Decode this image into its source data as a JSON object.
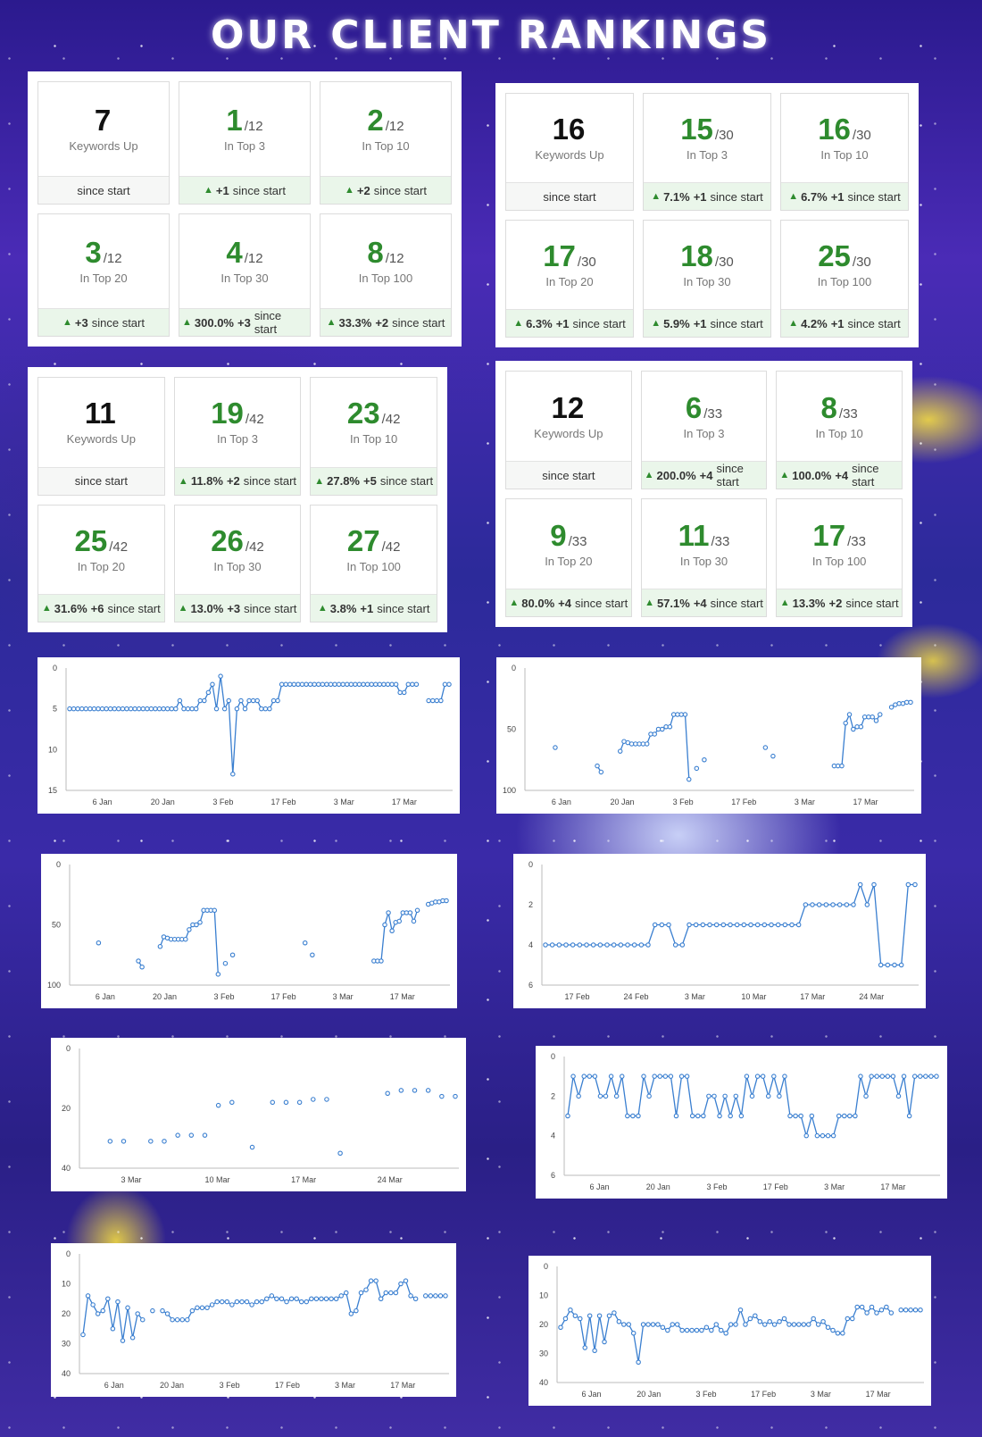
{
  "title": "OUR CLIENT RANKINGS",
  "colors": {
    "accent": "#2e8b2e",
    "line": "#3a7fd0"
  },
  "icons": {
    "up": "arrow-up-icon"
  },
  "panels": [
    {
      "cards": [
        {
          "value": "7",
          "of": "",
          "label": "Keywords Up",
          "pct": "",
          "change": "",
          "suffix": "since start"
        },
        {
          "value": "1",
          "of": "/12",
          "label": "In Top 3",
          "pct": "",
          "change": "+1",
          "suffix": "since start"
        },
        {
          "value": "2",
          "of": "/12",
          "label": "In Top 10",
          "pct": "",
          "change": "+2",
          "suffix": "since start"
        },
        {
          "value": "3",
          "of": "/12",
          "label": "In Top 20",
          "pct": "",
          "change": "+3",
          "suffix": "since start"
        },
        {
          "value": "4",
          "of": "/12",
          "label": "In Top 30",
          "pct": "300.0%",
          "change": "+3",
          "suffix": "since start"
        },
        {
          "value": "8",
          "of": "/12",
          "label": "In Top 100",
          "pct": "33.3%",
          "change": "+2",
          "suffix": "since start"
        }
      ]
    },
    {
      "cards": [
        {
          "value": "16",
          "of": "",
          "label": "Keywords Up",
          "pct": "",
          "change": "",
          "suffix": "since start"
        },
        {
          "value": "15",
          "of": "/30",
          "label": "In Top 3",
          "pct": "7.1%",
          "change": "+1",
          "suffix": "since start"
        },
        {
          "value": "16",
          "of": "/30",
          "label": "In Top 10",
          "pct": "6.7%",
          "change": "+1",
          "suffix": "since start"
        },
        {
          "value": "17",
          "of": "/30",
          "label": "In Top 20",
          "pct": "6.3%",
          "change": "+1",
          "suffix": "since start"
        },
        {
          "value": "18",
          "of": "/30",
          "label": "In Top 30",
          "pct": "5.9%",
          "change": "+1",
          "suffix": "since start"
        },
        {
          "value": "25",
          "of": "/30",
          "label": "In Top 100",
          "pct": "4.2%",
          "change": "+1",
          "suffix": "since start"
        }
      ]
    },
    {
      "cards": [
        {
          "value": "11",
          "of": "",
          "label": "Keywords Up",
          "pct": "",
          "change": "",
          "suffix": "since start"
        },
        {
          "value": "19",
          "of": "/42",
          "label": "In Top 3",
          "pct": "11.8%",
          "change": "+2",
          "suffix": "since start"
        },
        {
          "value": "23",
          "of": "/42",
          "label": "In Top 10",
          "pct": "27.8%",
          "change": "+5",
          "suffix": "since start"
        },
        {
          "value": "25",
          "of": "/42",
          "label": "In Top 20",
          "pct": "31.6%",
          "change": "+6",
          "suffix": "since start"
        },
        {
          "value": "26",
          "of": "/42",
          "label": "In Top 30",
          "pct": "13.0%",
          "change": "+3",
          "suffix": "since start"
        },
        {
          "value": "27",
          "of": "/42",
          "label": "In Top 100",
          "pct": "3.8%",
          "change": "+1",
          "suffix": "since start"
        }
      ]
    },
    {
      "cards": [
        {
          "value": "12",
          "of": "",
          "label": "Keywords Up",
          "pct": "",
          "change": "",
          "suffix": "since start"
        },
        {
          "value": "6",
          "of": "/33",
          "label": "In Top 3",
          "pct": "200.0%",
          "change": "+4",
          "suffix": "since start"
        },
        {
          "value": "8",
          "of": "/33",
          "label": "In Top 10",
          "pct": "100.0%",
          "change": "+4",
          "suffix": "since start"
        },
        {
          "value": "9",
          "of": "/33",
          "label": "In Top 20",
          "pct": "80.0%",
          "change": "+4",
          "suffix": "since start"
        },
        {
          "value": "11",
          "of": "/33",
          "label": "In Top 30",
          "pct": "57.1%",
          "change": "+4",
          "suffix": "since start"
        },
        {
          "value": "17",
          "of": "/33",
          "label": "In Top 100",
          "pct": "13.3%",
          "change": "+2",
          "suffix": "since start"
        }
      ]
    }
  ],
  "chart_data": [
    {
      "type": "line",
      "title": "",
      "ylim": [
        0,
        15
      ],
      "reversed_y": true,
      "yticks": [
        "0",
        "5",
        "10",
        "15"
      ],
      "xticks": [
        "6 Jan",
        "20 Jan",
        "3 Feb",
        "17 Feb",
        "3 Mar",
        "17 Mar"
      ],
      "series": [
        {
          "values": [
            5,
            5,
            5,
            5,
            5,
            5,
            5,
            5,
            5,
            5,
            5,
            5,
            5,
            5,
            5,
            5,
            5,
            5,
            5,
            5,
            5,
            5,
            5,
            5,
            5,
            5,
            5,
            4,
            5,
            5,
            5,
            5,
            4,
            4,
            3,
            2,
            5,
            1,
            5,
            4,
            13,
            5,
            4,
            5,
            4,
            4,
            4,
            5,
            5,
            5,
            4,
            4,
            2,
            2,
            2,
            2,
            2,
            2,
            2,
            2,
            2,
            2,
            2,
            2,
            2,
            2,
            2,
            2,
            2,
            2,
            2,
            2,
            2,
            2,
            2,
            2,
            2,
            2,
            2,
            2,
            2,
            3,
            3,
            2,
            2,
            2,
            null,
            null,
            4,
            4,
            4,
            4,
            2,
            2
          ]
        }
      ]
    },
    {
      "type": "line",
      "title": "",
      "ylim": [
        0,
        100
      ],
      "reversed_y": true,
      "yticks": [
        "0",
        "50",
        "100"
      ],
      "xticks": [
        "6 Jan",
        "20 Jan",
        "3 Feb",
        "17 Feb",
        "3 Mar",
        "17 Mar"
      ],
      "series": [
        {
          "values": [
            null,
            null,
            null,
            null,
            null,
            null,
            null,
            65,
            null,
            null,
            null,
            null,
            null,
            null,
            null,
            null,
            null,
            null,
            80,
            85,
            null,
            null,
            null,
            null,
            68,
            60,
            61,
            62,
            62,
            62,
            62,
            62,
            54,
            54,
            50,
            50,
            48,
            48,
            38,
            38,
            38,
            38,
            91,
            null,
            82,
            null,
            75,
            null,
            null,
            null,
            null,
            null,
            null,
            null,
            null,
            null,
            null,
            null,
            null,
            null,
            null,
            null,
            65,
            null,
            72,
            null,
            null,
            null,
            null,
            null,
            null,
            null,
            null,
            null,
            null,
            null,
            null,
            null,
            null,
            null,
            80,
            80,
            80,
            45,
            38,
            50,
            48,
            48,
            40,
            40,
            40,
            43,
            38,
            null,
            null,
            32,
            30,
            29,
            29,
            28,
            28
          ]
        }
      ]
    },
    {
      "type": "line",
      "title": "",
      "ylim": [
        0,
        100
      ],
      "reversed_y": true,
      "yticks": [
        "0",
        "50",
        "100"
      ],
      "xticks": [
        "6 Jan",
        "20 Jan",
        "3 Feb",
        "17 Feb",
        "3 Mar",
        "17 Mar"
      ],
      "series": [
        {
          "values": [
            null,
            null,
            null,
            null,
            null,
            null,
            null,
            65,
            null,
            null,
            null,
            null,
            null,
            null,
            null,
            null,
            null,
            null,
            80,
            85,
            null,
            null,
            null,
            null,
            68,
            60,
            61,
            62,
            62,
            62,
            62,
            62,
            54,
            50,
            50,
            48,
            38,
            38,
            38,
            38,
            91,
            null,
            82,
            null,
            75,
            null,
            null,
            null,
            null,
            null,
            null,
            null,
            null,
            null,
            null,
            null,
            null,
            null,
            null,
            null,
            null,
            null,
            null,
            null,
            65,
            null,
            75,
            null,
            null,
            null,
            null,
            null,
            null,
            null,
            null,
            null,
            null,
            null,
            null,
            null,
            null,
            null,
            null,
            80,
            80,
            80,
            50,
            40,
            55,
            48,
            47,
            40,
            40,
            40,
            47,
            38,
            null,
            null,
            33,
            32,
            31,
            31,
            30,
            30
          ]
        }
      ]
    },
    {
      "type": "line",
      "title": "",
      "ylim": [
        0,
        6
      ],
      "reversed_y": true,
      "yticks": [
        "0",
        "2",
        "4",
        "6"
      ],
      "xticks": [
        "17 Feb",
        "24 Feb",
        "3 Mar",
        "10 Mar",
        "17 Mar",
        "24 Mar"
      ],
      "series": [
        {
          "values": [
            4,
            4,
            4,
            4,
            4,
            4,
            4,
            4,
            4,
            4,
            4,
            4,
            4,
            4,
            4,
            4,
            3,
            3,
            3,
            4,
            4,
            3,
            3,
            3,
            3,
            3,
            3,
            3,
            3,
            3,
            3,
            3,
            3,
            3,
            3,
            3,
            3,
            3,
            2,
            2,
            2,
            2,
            2,
            2,
            2,
            2,
            1,
            2,
            1,
            5,
            5,
            5,
            5,
            1,
            1
          ]
        }
      ]
    },
    {
      "type": "line",
      "title": "",
      "ylim": [
        0,
        40
      ],
      "reversed_y": true,
      "yticks": [
        "0",
        "20",
        "40"
      ],
      "xticks": [
        "3 Mar",
        "10 Mar",
        "17 Mar",
        "24 Mar"
      ],
      "series": [
        {
          "values": [
            null,
            null,
            null,
            null,
            31,
            null,
            31,
            null,
            null,
            null,
            31,
            null,
            31,
            null,
            29,
            null,
            29,
            null,
            29,
            null,
            19,
            null,
            18,
            null,
            null,
            33,
            null,
            null,
            18,
            null,
            18,
            null,
            18,
            null,
            17,
            null,
            17,
            null,
            35,
            null,
            null,
            null,
            null,
            null,
            null,
            15,
            null,
            14,
            null,
            14,
            null,
            14,
            null,
            16,
            null,
            16
          ]
        }
      ]
    },
    {
      "type": "line",
      "title": "",
      "ylim": [
        0,
        6
      ],
      "reversed_y": true,
      "yticks": [
        "0",
        "2",
        "4",
        "6"
      ],
      "xticks": [
        "6 Jan",
        "20 Jan",
        "3 Feb",
        "17 Feb",
        "3 Mar",
        "17 Mar"
      ],
      "series": [
        {
          "values": [
            3,
            1,
            2,
            1,
            1,
            1,
            2,
            2,
            1,
            2,
            1,
            3,
            3,
            3,
            1,
            2,
            1,
            1,
            1,
            1,
            3,
            1,
            1,
            3,
            3,
            3,
            2,
            2,
            3,
            2,
            3,
            2,
            3,
            1,
            2,
            1,
            1,
            2,
            1,
            2,
            1,
            3,
            3,
            3,
            4,
            3,
            4,
            4,
            4,
            4,
            3,
            3,
            3,
            3,
            1,
            2,
            1,
            1,
            1,
            1,
            1,
            2,
            1,
            3,
            1,
            1,
            1,
            1,
            1
          ]
        }
      ]
    },
    {
      "type": "line",
      "title": "",
      "ylim": [
        0,
        40
      ],
      "reversed_y": true,
      "yticks": [
        "0",
        "10",
        "20",
        "30",
        "40"
      ],
      "xticks": [
        "6 Jan",
        "20 Jan",
        "3 Feb",
        "17 Feb",
        "3 Mar",
        "17 Mar"
      ],
      "series": [
        {
          "values": [
            27,
            14,
            17,
            20,
            19,
            15,
            25,
            16,
            29,
            18,
            28,
            20,
            22,
            null,
            19,
            null,
            19,
            20,
            22,
            22,
            22,
            22,
            19,
            18,
            18,
            18,
            17,
            16,
            16,
            16,
            17,
            16,
            16,
            16,
            17,
            16,
            16,
            15,
            14,
            15,
            15,
            16,
            15,
            15,
            16,
            16,
            15,
            15,
            15,
            15,
            15,
            15,
            14,
            13,
            20,
            19,
            13,
            12,
            9,
            9,
            15,
            13,
            13,
            13,
            10,
            9,
            14,
            15,
            null,
            14,
            14,
            14,
            14,
            14
          ]
        }
      ]
    },
    {
      "type": "line",
      "title": "",
      "ylim": [
        0,
        40
      ],
      "reversed_y": true,
      "yticks": [
        "0",
        "10",
        "20",
        "30",
        "40"
      ],
      "xticks": [
        "6 Jan",
        "20 Jan",
        "3 Feb",
        "17 Feb",
        "3 Mar",
        "17 Mar"
      ],
      "series": [
        {
          "values": [
            21,
            18,
            15,
            17,
            18,
            28,
            17,
            29,
            17,
            26,
            17,
            16,
            19,
            20,
            20,
            23,
            33,
            20,
            20,
            20,
            20,
            21,
            22,
            20,
            20,
            22,
            22,
            22,
            22,
            22,
            21,
            22,
            20,
            22,
            23,
            20,
            20,
            15,
            20,
            18,
            17,
            19,
            20,
            19,
            20,
            19,
            18,
            20,
            20,
            20,
            20,
            20,
            18,
            20,
            19,
            21,
            22,
            23,
            23,
            18,
            18,
            14,
            14,
            16,
            14,
            16,
            15,
            14,
            16,
            null,
            15,
            15,
            15,
            15,
            15
          ]
        }
      ]
    }
  ]
}
